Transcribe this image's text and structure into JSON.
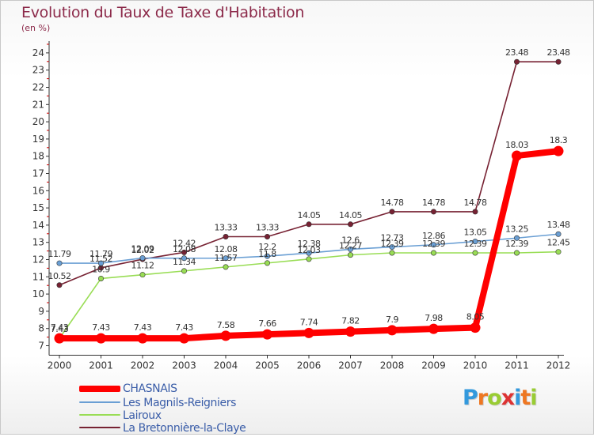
{
  "title": "Evolution du Taux de Taxe d'Habitation",
  "unit": "(en %)",
  "chart_data": {
    "type": "line",
    "x": [
      "2000",
      "2001",
      "2002",
      "2003",
      "2004",
      "2005",
      "2006",
      "2007",
      "2008",
      "2009",
      "2010",
      "2011",
      "2012"
    ],
    "y_ticks": [
      "7",
      "8",
      "9",
      "10",
      "11",
      "12",
      "13",
      "14",
      "15",
      "16",
      "17",
      "18",
      "19",
      "20",
      "21",
      "22",
      "23",
      "24"
    ],
    "ylim": [
      7,
      24.5
    ],
    "grid": false,
    "legend_position": "bottom-left",
    "series": [
      {
        "name": "CHASNAIS",
        "color": "#ff0000",
        "values": [
          7.43,
          7.43,
          7.43,
          7.43,
          7.58,
          7.66,
          7.74,
          7.82,
          7.9,
          7.98,
          8.05,
          18.03,
          18.3
        ],
        "labels": [
          "7.43",
          "7.43",
          "7.43",
          "7.43",
          "7.58",
          "7.66",
          "7.74",
          "7.82",
          "7.9",
          "7.98",
          "8.05",
          "18.03",
          "18.3"
        ]
      },
      {
        "name": "Les Magnils-Reigniers",
        "color": "#6a9fd4",
        "values": [
          11.79,
          11.79,
          12.09,
          12.08,
          12.08,
          12.2,
          12.38,
          12.6,
          12.73,
          12.86,
          13.05,
          13.25,
          13.48
        ],
        "labels": [
          "11.79",
          "11.79",
          "12.09",
          "12.08",
          "12.08",
          "12.2",
          "12.38",
          "12.6",
          "12.73",
          "12.86",
          "13.05",
          "13.25",
          "13.48"
        ]
      },
      {
        "name": "Lairoux",
        "color": "#99dd55",
        "values": [
          7.43,
          10.9,
          11.12,
          11.34,
          11.57,
          11.8,
          12.03,
          12.27,
          12.39,
          12.39,
          12.39,
          12.39,
          12.45
        ],
        "labels": [
          "7.43",
          "10.9",
          "11.12",
          "11.34",
          "11.57",
          "11.8",
          "12.03",
          "12.27",
          "12.39",
          "12.39",
          "12.39",
          "12.39",
          "12.45"
        ]
      },
      {
        "name": "La Bretonnière-la-Claye",
        "color": "#772233",
        "values": [
          10.52,
          11.52,
          12.02,
          12.42,
          13.33,
          13.33,
          14.05,
          14.05,
          14.78,
          14.78,
          14.78,
          23.48,
          23.48
        ],
        "labels": [
          "10.52",
          "11.52",
          "12.02",
          "12.42",
          "13.33",
          "13.33",
          "14.05",
          "14.05",
          "14.78",
          "14.78",
          "14.78",
          "23.48",
          "23.48"
        ]
      }
    ]
  },
  "legend": [
    {
      "label": "CHASNAIS",
      "color": "#ff0000"
    },
    {
      "label": "Les Magnils-Reigniers",
      "color": "#6a9fd4"
    },
    {
      "label": "Lairoux",
      "color": "#99dd55"
    },
    {
      "label": "La Bretonnière-la-Claye",
      "color": "#772233"
    }
  ],
  "logo": {
    "letters": [
      "P",
      "r",
      "o",
      "x",
      "i",
      "t",
      "i"
    ],
    "colors": [
      "#3399dd",
      "#ee7722",
      "#99cc33",
      "#dd3333",
      "#3399dd",
      "#ee7722",
      "#99cc33"
    ]
  }
}
